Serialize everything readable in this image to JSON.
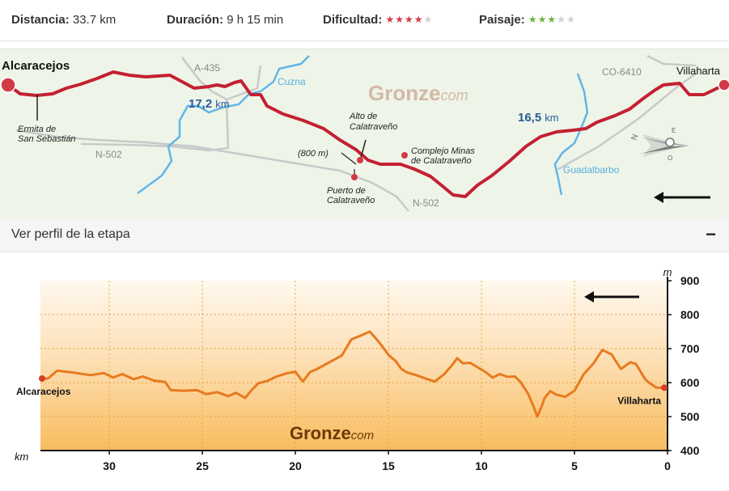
{
  "stats": {
    "distance_label": "Distancia:",
    "distance_value": "33.7 km",
    "duration_label": "Duración:",
    "duration_value": "9 h 15 min",
    "difficulty_label": "Dificultad:",
    "difficulty_rating": 4,
    "landscape_label": "Paisaje:",
    "landscape_rating": 3,
    "stars_total": 5,
    "difficulty_color": "#d23a48",
    "landscape_color": "#6cb33e",
    "star_off_color": "#cfcfcf"
  },
  "map": {
    "start_town": "Alcaracejos",
    "end_town": "Villaharta",
    "watermark_main": "Gronze",
    "watermark_suffix": "com",
    "segment1_km": "17,2",
    "segment2_km": "16,5",
    "km_unit": "km",
    "roads": [
      "A-435",
      "N-502",
      "N-502",
      "CO-6410"
    ],
    "rivers": [
      "Cuzna",
      "Guadalbarbo"
    ],
    "poi_ermita_1": "Ermita de",
    "poi_ermita_2": "San Sebastián",
    "poi_alto_1": "Alto de",
    "poi_alto_2": "Calatraveño",
    "poi_elev": "(800 m)",
    "poi_minas_1": "Complejo Minas",
    "poi_minas_2": "de Calatraveño",
    "poi_puerto_1": "Puerto de",
    "poi_puerto_2": "Calatraveño",
    "compass_n": "N",
    "compass_e": "E",
    "compass_o": "O",
    "route_color": "#c42032",
    "river_color": "#5ab4e6",
    "road_color": "#c8c8c8"
  },
  "perfil": {
    "title": "Ver perfil de la etapa",
    "toggle": "−"
  },
  "chart_data": {
    "type": "area",
    "xlabel": "km",
    "ylabel": "m",
    "x_reversed": true,
    "xlim": [
      33.7,
      0
    ],
    "ylim": [
      400,
      900
    ],
    "xticks": [
      30,
      25,
      20,
      15,
      10,
      5,
      0
    ],
    "yticks": [
      400,
      500,
      600,
      700,
      800,
      900
    ],
    "grid": true,
    "start_label": "Alcaracejos",
    "end_label": "Villaharta",
    "watermark_main": "Gronze",
    "watermark_suffix": "com",
    "line_color": "#e87a1e",
    "series": [
      {
        "x": [
          33.7,
          33.3,
          32.8,
          32.0,
          31.0,
          30.3,
          29.8,
          29.3,
          28.7,
          28.2,
          27.6,
          27.0,
          26.7,
          26.0,
          25.3,
          24.8,
          24.2,
          23.6,
          23.2,
          22.7,
          22.4,
          22.0,
          21.5,
          21.0,
          20.5,
          20.0,
          19.6,
          19.2,
          18.9,
          18.5,
          18.0,
          17.5,
          17.0,
          16.5,
          16.0,
          15.7,
          15.4,
          15.0,
          14.6,
          14.3,
          14.0,
          13.5,
          13.0,
          12.5,
          12.0,
          11.6,
          11.3,
          11.0,
          10.6,
          10.2,
          9.8,
          9.4,
          9.0,
          8.6,
          8.2,
          7.9,
          7.5,
          7.2,
          7.0,
          6.8,
          6.6,
          6.3,
          6.0,
          5.5,
          5.0,
          4.5,
          4.0,
          3.5,
          3.0,
          2.8,
          2.5,
          2.0,
          1.7,
          1.4,
          1.2,
          1.0,
          0.6,
          0.0
        ],
        "y": [
          612,
          612,
          635,
          630,
          622,
          628,
          615,
          625,
          610,
          618,
          606,
          602,
          578,
          576,
          578,
          566,
          572,
          560,
          570,
          555,
          575,
          598,
          605,
          618,
          627,
          632,
          603,
          632,
          638,
          650,
          665,
          680,
          727,
          738,
          750,
          732,
          712,
          682,
          663,
          640,
          630,
          622,
          612,
          603,
          625,
          650,
          672,
          657,
          658,
          645,
          632,
          615,
          625,
          617,
          618,
          602,
          568,
          530,
          500,
          525,
          555,
          575,
          565,
          558,
          576,
          625,
          655,
          696,
          683,
          665,
          640,
          660,
          655,
          628,
          610,
          600,
          585,
          585
        ]
      }
    ]
  }
}
